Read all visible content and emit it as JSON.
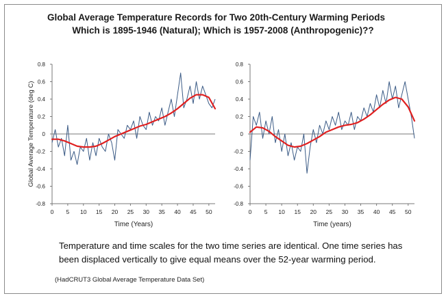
{
  "title_line1": "Global Average Temperature Records for Two 20th-Century Warming Periods",
  "title_line2": "Which is 1895-1946 (Natural); Which is 1957-2008 (Anthropogenic)??",
  "caption_line1": "Temperature and time scales for the two time series are identical.  One time series has",
  "caption_line2": "been displaced vertically to give equal means over the 52-year warming period.",
  "source": "(HadCRUT3 Global Average Temperature Data Set)",
  "colors": {
    "raw_series": "#3a5a85",
    "smooth_series": "#e02020",
    "axis": "#777777",
    "grid": "#d9d9d9"
  },
  "chart_data": [
    {
      "type": "line",
      "xlabel": "Time (Years)",
      "ylabel": "Global Average Temperature (deg C)",
      "xlim": [
        0,
        52
      ],
      "ylim": [
        -0.8,
        0.8
      ],
      "xticks": [
        "0",
        "5",
        "10",
        "15",
        "20",
        "25",
        "30",
        "35",
        "40",
        "45",
        "50"
      ],
      "yticks": [
        "0.8",
        "0.6",
        "0.4",
        "0.2",
        "0",
        "-0.2",
        "-0.4",
        "-0.6",
        "-0.8"
      ],
      "grid": false,
      "series": [
        {
          "role": "monthly",
          "x": [
            0,
            1,
            2,
            3,
            4,
            5,
            6,
            7,
            8,
            9,
            10,
            11,
            12,
            13,
            14,
            15,
            16,
            17,
            18,
            19,
            20,
            21,
            22,
            23,
            24,
            25,
            26,
            27,
            28,
            29,
            30,
            31,
            32,
            33,
            34,
            35,
            36,
            37,
            38,
            39,
            40,
            41,
            42,
            43,
            44,
            45,
            46,
            47,
            48,
            49,
            50,
            51,
            52
          ],
          "y": [
            -0.1,
            0.05,
            -0.15,
            -0.05,
            -0.25,
            0.1,
            -0.3,
            -0.2,
            -0.35,
            -0.15,
            -0.2,
            -0.05,
            -0.3,
            -0.1,
            -0.25,
            -0.05,
            -0.15,
            -0.2,
            0.0,
            -0.1,
            -0.3,
            0.05,
            0.0,
            -0.05,
            0.1,
            0.05,
            0.15,
            -0.05,
            0.2,
            0.1,
            0.05,
            0.25,
            0.1,
            0.2,
            0.15,
            0.3,
            0.1,
            0.25,
            0.4,
            0.2,
            0.45,
            0.7,
            0.3,
            0.4,
            0.55,
            0.35,
            0.6,
            0.4,
            0.55,
            0.45,
            0.35,
            0.3,
            0.4
          ]
        },
        {
          "role": "smoothed",
          "x": [
            0,
            2,
            4,
            6,
            8,
            10,
            12,
            14,
            16,
            18,
            20,
            22,
            24,
            26,
            28,
            30,
            32,
            34,
            36,
            38,
            40,
            42,
            44,
            46,
            48,
            50,
            52
          ],
          "y": [
            -0.06,
            -0.06,
            -0.08,
            -0.11,
            -0.14,
            -0.15,
            -0.15,
            -0.14,
            -0.11,
            -0.07,
            -0.03,
            0.0,
            0.03,
            0.06,
            0.09,
            0.11,
            0.14,
            0.17,
            0.2,
            0.24,
            0.29,
            0.35,
            0.41,
            0.45,
            0.45,
            0.42,
            0.29
          ]
        }
      ]
    },
    {
      "type": "line",
      "xlabel": "Time (years)",
      "ylabel": "",
      "xlim": [
        0,
        52
      ],
      "ylim": [
        -0.8,
        0.8
      ],
      "xticks": [
        "0",
        "5",
        "10",
        "15",
        "20",
        "25",
        "30",
        "35",
        "40",
        "45",
        "50"
      ],
      "yticks": [
        "0.8",
        "0.6",
        "0.4",
        "0.2",
        "0",
        "-0.2",
        "-0.4",
        "-0.6",
        "-0.8"
      ],
      "grid": false,
      "series": [
        {
          "role": "monthly",
          "x": [
            0,
            1,
            2,
            3,
            4,
            5,
            6,
            7,
            8,
            9,
            10,
            11,
            12,
            13,
            14,
            15,
            16,
            17,
            18,
            19,
            20,
            21,
            22,
            23,
            24,
            25,
            26,
            27,
            28,
            29,
            30,
            31,
            32,
            33,
            34,
            35,
            36,
            37,
            38,
            39,
            40,
            41,
            42,
            43,
            44,
            45,
            46,
            47,
            48,
            49,
            50,
            51,
            52
          ],
          "y": [
            -0.3,
            0.2,
            0.1,
            0.25,
            -0.05,
            0.15,
            0.0,
            0.2,
            -0.1,
            0.05,
            -0.2,
            0.0,
            -0.25,
            -0.1,
            -0.3,
            -0.15,
            -0.2,
            0.0,
            -0.45,
            -0.15,
            0.05,
            -0.1,
            0.1,
            0.0,
            0.15,
            0.05,
            0.2,
            0.1,
            0.25,
            0.05,
            0.15,
            0.1,
            0.25,
            0.05,
            0.2,
            0.15,
            0.3,
            0.2,
            0.35,
            0.25,
            0.45,
            0.3,
            0.5,
            0.35,
            0.6,
            0.4,
            0.55,
            0.3,
            0.45,
            0.6,
            0.4,
            0.2,
            -0.05
          ]
        },
        {
          "role": "smoothed",
          "x": [
            0,
            2,
            4,
            6,
            8,
            10,
            12,
            14,
            16,
            18,
            20,
            22,
            24,
            26,
            28,
            30,
            32,
            34,
            36,
            38,
            40,
            42,
            44,
            46,
            48,
            50,
            51,
            52
          ],
          "y": [
            0.02,
            0.08,
            0.07,
            0.03,
            -0.03,
            -0.08,
            -0.13,
            -0.15,
            -0.14,
            -0.11,
            -0.07,
            -0.03,
            0.02,
            0.05,
            0.08,
            0.1,
            0.11,
            0.13,
            0.17,
            0.22,
            0.28,
            0.34,
            0.39,
            0.42,
            0.4,
            0.31,
            0.23,
            0.15
          ]
        }
      ]
    }
  ]
}
